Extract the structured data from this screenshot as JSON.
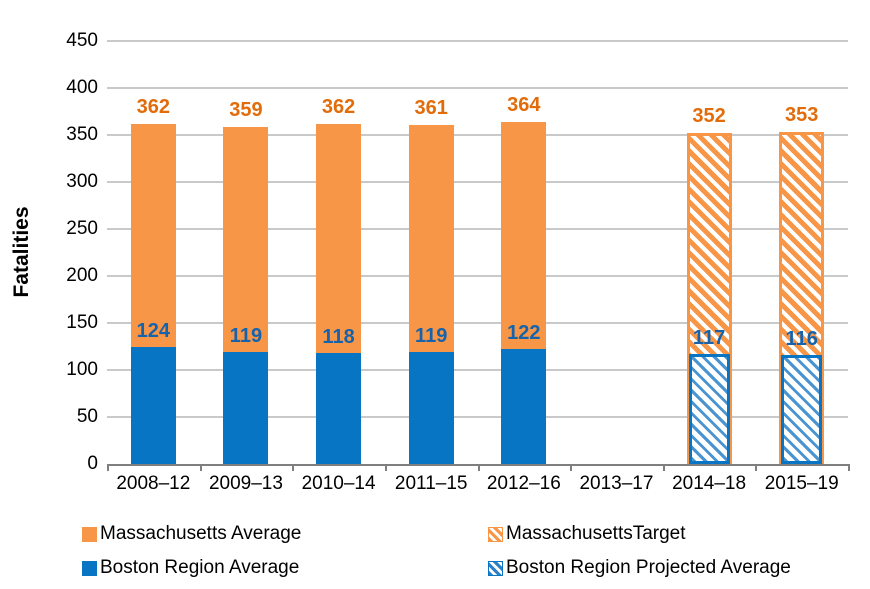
{
  "colors": {
    "massachusetts_bar": "#F79646",
    "boston_bar": "#0774C4",
    "massachusetts_label": "#E26C0A",
    "boston_label": "#1663AC",
    "gridline": "#C9C9C9",
    "axis_line": "#7F7F7F",
    "text": "#000000"
  },
  "chart_data": {
    "type": "bar",
    "stacked": true,
    "title": "",
    "xlabel": "",
    "ylabel": "Fatalities",
    "ylim": [
      0,
      450
    ],
    "ytick_step": 50,
    "yticks": [
      450,
      400,
      350,
      300,
      250,
      200,
      150,
      100,
      50,
      0
    ],
    "grid": "horizontal",
    "legend_position": "bottom",
    "value_labels": "shown above stack top (state total) and above Boston segment",
    "categories": [
      "2008–12",
      "2009–13",
      "2010–14",
      "2011–15",
      "2012–16",
      "2013–17",
      "2014–18",
      "2015–19"
    ],
    "series": [
      {
        "name": "Massachusetts Average",
        "swatch": "solid-orange",
        "values": [
          362,
          359,
          362,
          361,
          364,
          null,
          null,
          null
        ]
      },
      {
        "name": "MassachusettsTarget",
        "swatch": "hatched-orange",
        "values": [
          null,
          null,
          null,
          null,
          null,
          null,
          352,
          353
        ]
      },
      {
        "name": "Boston Region Average",
        "swatch": "solid-blue",
        "values": [
          124,
          119,
          118,
          119,
          122,
          null,
          null,
          null
        ]
      },
      {
        "name": "Boston Region Projected Average",
        "swatch": "hatched-blue",
        "values": [
          null,
          null,
          null,
          null,
          null,
          null,
          117,
          116
        ]
      }
    ]
  }
}
